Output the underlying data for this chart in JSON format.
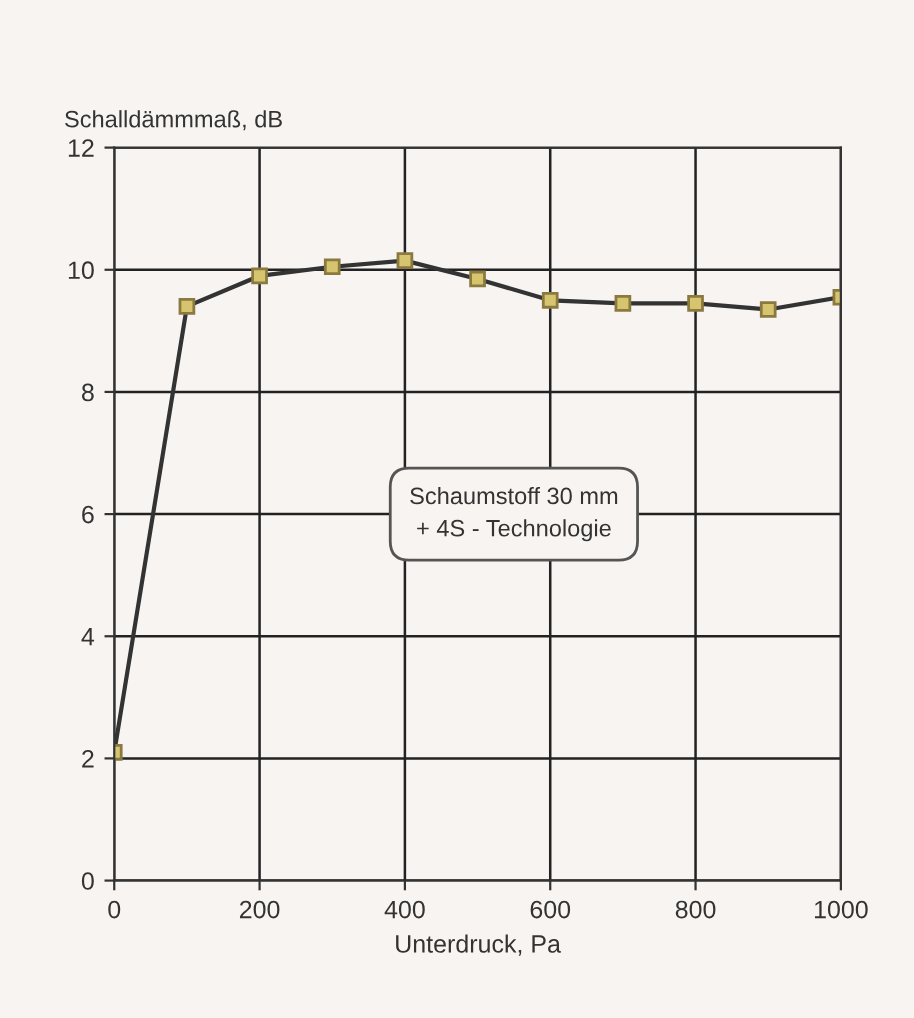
{
  "chart_data": {
    "type": "line",
    "ylabel": "Schalldämmmaß, dB",
    "xlabel": "Unterdruck, Pa",
    "x": [
      0,
      100,
      200,
      300,
      400,
      500,
      600,
      700,
      800,
      900,
      1000
    ],
    "series": [
      {
        "color": "#333333",
        "values": [
          2.1,
          9.4,
          9.9,
          10.05,
          10.15,
          9.85,
          9.5,
          9.45,
          9.45,
          9.35,
          9.55
        ]
      }
    ],
    "xlim": [
      0,
      1000
    ],
    "xticks": [
      0,
      200,
      400,
      600,
      800,
      1000
    ],
    "ylim": [
      0,
      12
    ],
    "yticks": [
      0,
      2,
      4,
      6,
      8,
      10,
      12
    ],
    "grid": true,
    "marker": "square",
    "line_style": "solid",
    "annotations": [
      "Schaumstoff 30 mm\n+ 4S - Technologie"
    ]
  }
}
